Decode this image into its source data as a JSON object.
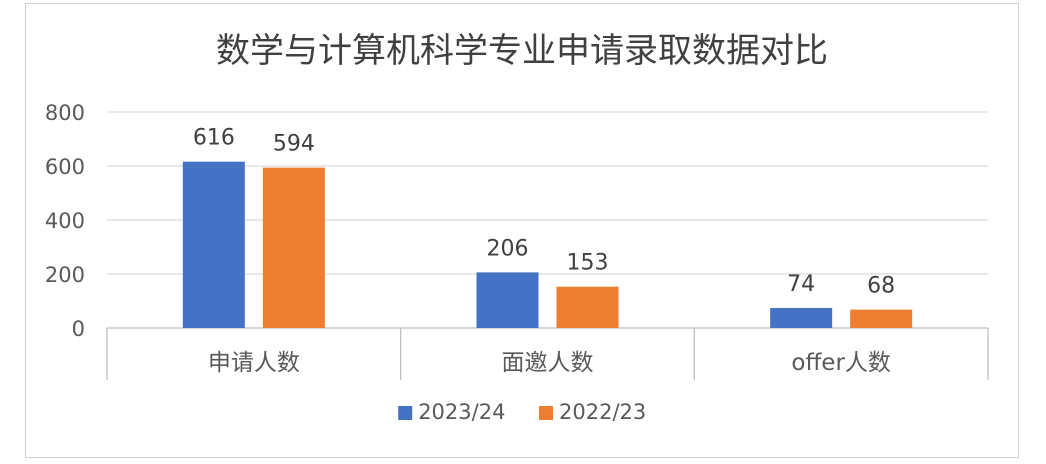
{
  "colors": {
    "series_1": "#4472C4",
    "series_2": "#ED7D31",
    "grid": "#d9d9d9",
    "axis": "#bfbfbf"
  },
  "chart_data": {
    "type": "bar",
    "title": "数学与计算机科学专业申请录取数据对比",
    "categories": [
      "申请人数",
      "面邀人数",
      "offer人数"
    ],
    "series": [
      {
        "name": "2023/24",
        "values": [
          616,
          206,
          74
        ]
      },
      {
        "name": "2022/23",
        "values": [
          594,
          153,
          68
        ]
      }
    ],
    "ylim": [
      0,
      800
    ],
    "yticks": [
      0,
      200,
      400,
      600,
      800
    ],
    "grid": true,
    "legend": "bottom",
    "data_labels": true
  }
}
